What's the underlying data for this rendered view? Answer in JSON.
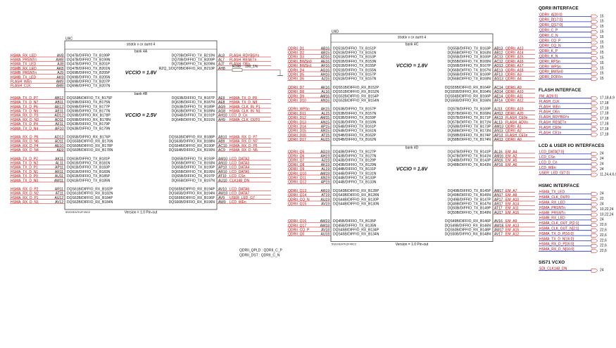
{
  "left_part": {
    "ref": "U9C",
    "title": "stratix v cx aumt 4",
    "version": "Version = 1.0 Pin-out",
    "part_no": "5SGXEA7K2F40C2",
    "resistor": {
      "ref": "R198",
      "value": "100_1%"
    },
    "groups": [
      {
        "label": "bank 4A",
        "vccio": "VCCIO = 1.8V",
        "left": [
          [
            "HSMA_RX_LED",
            "AV8",
            "DQ47B/DIFFIO_TX_B199P"
          ],
          [
            "HSMA_PRSNTn",
            "AW8",
            "DQ47B/DIFFIO_TX_B199N"
          ],
          [
            "HSMA_TX_LED",
            "AJ8",
            "DQ47B/DIFFIO_TX_B201P"
          ],
          [
            "HSMB_RX_LED",
            "AK8",
            "DQ47B/DIFFIO_TX_B201N"
          ],
          [
            "HSMB_PRSNTn",
            "AJ9",
            "DQ69B/DIFFIO_TX_B205P"
          ],
          [
            "HSMB_TX_LED",
            "AK9",
            "DQ69B/DIFFIO_TX_B205N"
          ],
          [
            "FLASH_WEn",
            "AM9",
            "DQ69B/DIFFIO_TX_B207P"
          ],
          [
            "FLASH_CLK",
            "AM8",
            "DQ69B/DIFFIO_TX_B207N"
          ]
        ],
        "right": [
          [
            "DQ70B/DIFFIO_TX_B210N",
            "AL8",
            "FLASH_RDYBSYn"
          ],
          [
            "DQ70B/DIFFIO_TX_B209P",
            "AL7",
            "FLASH_RESETn"
          ],
          [
            "DQ70B/DIFFIO_TX_B209N",
            "AJ7",
            "FLASH_OEn"
          ],
          [
            "RZQ_1/DQ70B/DIFFIO_RX_B210P",
            "AH8"
          ]
        ]
      },
      {
        "label": "bank 4B",
        "vccio": "VCCIO = 2.5V",
        "left": [
          [
            "HSMA_TX_D_P7",
            "AB12",
            "DQS59B/DIFFIO_TX_B175P"
          ],
          [
            "HSMA_TX_D_N7",
            "AB11",
            "DQ59B/DIFFIO_TX_B175N"
          ],
          [
            "HSMA_TX_D_P6",
            "AE12",
            "DQ59B/DIFFIO_TX_B177P"
          ],
          [
            "HSMA_TX_D_N6",
            "AE11",
            "DQ59B/DIFFIO_TX_B177N"
          ],
          [
            "HSMA_RX_D_P3",
            "AD12",
            "DQ59B/DIFFIO_RX_B178P"
          ],
          [
            "HSMA_RX_D_N3",
            "AD11",
            "DQ59B/DIFFIO_RX_B178N"
          ],
          [
            "HSMA_TX_D_P4",
            "AF11",
            "DQ63B/DIFFIO_TX_B179P"
          ],
          [
            "HSMA_TX_D_N4",
            "AF10",
            "DQ63B/DIFFIO_TX_B179N"
          ]
        ],
        "right": [
          [
            "DQ63B/DIFFIO_TX_B187P",
            "AE9",
            "HSMA_TX_D_P8"
          ],
          [
            "DQ63B/DIFFIO_TX_B187N",
            "AE8",
            "HSMA_TX_D_N8"
          ],
          [
            "DQ63B/DIFFIO_TX_B189P",
            "AG9",
            "HSMA_CLK_IN_P1"
          ],
          [
            "DQ63B/DIFFIO_TX_B189N",
            "AG8",
            "HSMA_CLK_IN_N1"
          ],
          [
            "DQ64B/DIFFIO_TX_B191P",
            "AH10",
            "LCD_D_Cn"
          ],
          [
            "DQ64B/DIFFIO_TX_B191N",
            "AH9",
            "HSMA_CLK_OUT0"
          ]
        ]
      },
      {
        "label": null,
        "vccio": null,
        "left": [
          [
            "HSMA_RX_D_P6",
            "AD12",
            "DQ55B/DIFFIO_RX_B176P"
          ],
          [
            "HSMA_RX_D_N6",
            "AD11",
            "DQS55B/DIFFIO_RX_B176N"
          ],
          [
            "HSMA_RX_D_P4",
            "AE10",
            "DQS60B/DIFFIO_RX_B178P"
          ],
          [
            "HSMA_RX_D_N4",
            "AE9",
            "DQS60B/DIFFIO_RX_B178N"
          ]
        ],
        "right": [
          [
            "DQS63B/DIFFIO_RX_B188P",
            "AB10",
            "HSMA_RX_D_P7"
          ],
          [
            "DQS63B/DIFFIO_RX_B188N",
            "AB9",
            "HSMA_RX_D_N7"
          ],
          [
            "DQS64B/DIFFIO_RX_B190P",
            "AC10",
            "HSMA_RX_D_P5"
          ],
          [
            "DQS64B/DIFFIO_RX_B190N",
            "AC9",
            "HSMA_RX_D_N5"
          ]
        ]
      },
      {
        "label": null,
        "vccio": null,
        "left": [
          [
            "HSMA_TX_D_P2",
            "AK11",
            "DQ61B/DIFFIO_TX_B181P"
          ],
          [
            "HSMA_TX_D_N2",
            "AL11",
            "DQ61B/DIFFIO_TX_B181N"
          ],
          [
            "HSMA_TX_D_P1",
            "AP11",
            "DQ61B/DIFFIO_TX_B183P"
          ],
          [
            "HSMA_TX_D_N1",
            "AR11",
            "DQ61B/DIFFIO_TX_B183N"
          ],
          [
            "HSMA_TX_D_P0",
            "AU11",
            "DQ61B/DIFFIO_TX_B185P"
          ],
          [
            "HSMA_TX_D_N0",
            "AW11",
            "DQ61B/DIFFIO_TX_B185N"
          ]
        ],
        "right": [
          [
            "DQ65B/DIFFIO_TX_B193P",
            "AM10",
            "LCD_DATA2"
          ],
          [
            "DQ65B/DIFFIO_TX_B193N",
            "AN10",
            "LCD_DATA3"
          ],
          [
            "DQ65B/DIFFIO_TX_B195P",
            "AP10",
            "LCD_DATA4"
          ],
          [
            "DQ65B/DIFFIO_TX_B195N",
            "AR10",
            "LCD_DATA5"
          ],
          [
            "DQ65B/DIFFIO_TX_B197P",
            "AT10",
            "LCD_CSn"
          ],
          [
            "DQ65B/DIFFIO_TX_B197N",
            "AU10",
            "CLK148_DN"
          ]
        ]
      },
      {
        "label": null,
        "vccio": null,
        "left": [
          [
            "HSMA_RX_D_P2",
            "AR11",
            "DQS61B/DIFFIO_RX_B182P"
          ],
          [
            "HSMA_RX_D_N2",
            "AT11",
            "DQS61B/DIFFIO_RX_B182N"
          ],
          [
            "HSMA_RX_D_P1",
            "AU12",
            "DQS62B/DIFFIO_RX_B184P"
          ],
          [
            "HSMA_RX_D_N1",
            "AV12",
            "DQS62B/DIFFIO_RX_B184N"
          ]
        ],
        "right": [
          [
            "DQS65B/DIFFIO_RX_B194P",
            "AV10",
            "LCD_DATA6"
          ],
          [
            "DQS65B/DIFFIO_RX_B194N",
            "AW10",
            "LCD_DATA7"
          ],
          [
            "DQS66B/DIFFIO_RX_B196P",
            "AV9",
            "USER_LED_G7"
          ],
          [
            "DQS66B/DIFFIO_RX_B196N",
            "AW9",
            "LCD_WEn"
          ]
        ]
      }
    ]
  },
  "right_part": {
    "ref": "U9D",
    "title": "stratix v cx aumt 4",
    "version": "Version = 1.0 Pin-out",
    "part_no": "5SGXEA7K2F40C2",
    "groups": [
      {
        "label": "bank 4C",
        "vccio": "VCCIO = 1.8V",
        "left": [
          [
            "QDRII_D1",
            "AB16",
            "DQ51B/DIFFIO_TX_B151P"
          ],
          [
            "QDRII_D2",
            "AB15",
            "DQ51B/DIFFIO_TX_B151N"
          ],
          [
            "QDRII_D3",
            "AD16",
            "DQ51B/DIFFIO_TX_B153P"
          ],
          [
            "QDRII_BWSn0",
            "AE16",
            "DQ51B/DIFFIO_TX_B153N"
          ],
          [
            "QDRII_BWSn1",
            "AF16",
            "DQ51B/DIFFIO_TX_B155P"
          ],
          [
            "QDRII_D4",
            "AG16",
            "DQ51B/DIFFIO_TX_B155N"
          ],
          [
            "QDRII_D5",
            "AH16",
            "DQ51B/DIFFIO_TX_B157P"
          ],
          [
            "QDRII_D6",
            "AJ16",
            "DQ51B/DIFFIO_TX_B157N"
          ]
        ],
        "right": [
          [
            "DQ55B/DIFFIO_TX_B163P",
            "AB13",
            "QDRII_A13"
          ],
          [
            "DQ55B/DIFFIO_TX_B163N",
            "AB12",
            "QDRII_A14"
          ],
          [
            "DQ55B/DIFFIO_TX_B165P",
            "AC13",
            "QDRII_A15"
          ],
          [
            "DQ55B/DIFFIO_TX_B165N",
            "AC12",
            "QDRII_A16"
          ],
          [
            "DQ56B/DIFFIO_TX_B167P",
            "AD13",
            "QDRII_A17"
          ],
          [
            "DQ56B/DIFFIO_TX_B167N",
            "AE13",
            "QDRII_A18"
          ],
          [
            "DQ56B/DIFFIO_TX_B169P",
            "AF13",
            "QDRII_A3"
          ],
          [
            "DQ56B/DIFFIO_TX_B169N",
            "AG13",
            "QDRII_A4"
          ]
        ]
      },
      {
        "label": null,
        "vccio": null,
        "left": [
          [
            "QDRII_D7",
            "AK16",
            "DQS51B/DIFFIO_RX_B152P"
          ],
          [
            "QDRII_D8",
            "AL16",
            "DQS51B/DIFFIO_RX_B152N"
          ],
          [
            "QDRII_D9",
            "AM16",
            "DQS52B/DIFFIO_RX_B154P"
          ],
          [
            "QDRII_D10",
            "AN16",
            "DQS52B/DIFFIO_RX_B154N"
          ]
        ],
        "right": [
          [
            "DQS55B/DIFFIO_RX_B164P",
            "AC14",
            "QDRII_A9"
          ],
          [
            "DQS55B/DIFFIO_RX_B164N",
            "AD14",
            "QDRII_A10"
          ],
          [
            "DQS56B/DIFFIO_RX_B166P",
            "AE14",
            "QDRII_A11"
          ],
          [
            "DQS56B/DIFFIO_RX_B166N",
            "AF14",
            "QDRII_A12"
          ]
        ]
      },
      {
        "label": null,
        "vccio": null,
        "left": [
          [
            "QDRII_WPSn",
            "AK15",
            "DQ53B/DIFFIO_TX_B157P"
          ],
          [
            "QDRII_D11",
            "AL15",
            "DQ53B/DIFFIO_TX_B157N"
          ],
          [
            "QDRII_D12",
            "AM15",
            "DQ53B/DIFFIO_TX_B159P"
          ],
          [
            "QDRII_D13",
            "AN15",
            "DQ53B/DIFFIO_TX_B159N"
          ],
          [
            "QDRII_D14",
            "AP15",
            "DQ54B/DIFFIO_TX_B161P"
          ],
          [
            "QDRII_D15",
            "AR15",
            "DQ54B/DIFFIO_TX_B161N"
          ],
          [
            "QDRII_D16",
            "AT15",
            "DQ54B/DIFFIO_TX_B162P"
          ],
          [
            "QDRII_D17",
            "AU15",
            "DQ54B/DIFFIO_TX_B162N"
          ]
        ],
        "right": [
          [
            "DQ57B/DIFFIO_TX_B169P",
            "AJ13",
            "QDRII_A19"
          ],
          [
            "DQ57B/DIFFIO_TX_B169N",
            "AH13",
            "QDRII_A20"
          ],
          [
            "DQ57B/DIFFIO_TX_B171P",
            "AK13",
            "FLASH_CE0n"
          ],
          [
            "DQ57B/DIFFIO_TX_B171N",
            "AL13",
            "FLASH_ADVn"
          ],
          [
            "DQ58B/DIFFIO_TX_B173P",
            "AM13",
            "QDRII_A1"
          ],
          [
            "DQ58B/DIFFIO_TX_B173N",
            "AN13",
            "QDRII_A2"
          ],
          [
            "DQ58B/DIFFIO_TX_B174P",
            "AP13",
            "FLASH_CE1n"
          ],
          [
            "DQ58B/DIFFIO_TX_B174N",
            "AR13",
            "QDRII_A0"
          ]
        ]
      },
      {
        "label": "bank 4D",
        "vccio": "VCCIO = 1.8V",
        "left": [
          [
            "QDRII_Q5",
            "AG19",
            "DQ43B/DIFFIO_TX_B127P"
          ],
          [
            "QDRII_Q6",
            "AH19",
            "DQ43B/DIFFIO_TX_B127N"
          ],
          [
            "QDRII_Q7",
            "AJ19",
            "DQ43B/DIFFIO_TX_B129P"
          ],
          [
            "QDRII_Q8",
            "AK19",
            "DQ43B/DIFFIO_TX_B129N"
          ],
          [
            "QDRII_Q9",
            "AL19",
            "DQ44B/DIFFIO_TX_B131P"
          ],
          [
            "QDRII_Q10",
            "AM19",
            "DQ44B/DIFFIO_TX_B131N"
          ],
          [
            "QDRII_Q11",
            "AN19",
            "DQ44B/DIFFIO_TX_B133P"
          ],
          [
            "QDRII_Q12",
            "AP19",
            "DQ44B/DIFFIO_TX_B133N"
          ]
        ],
        "right": [
          [
            "DQ47B/DIFFIO_TX_B141P",
            "AL16",
            "EM_A4"
          ],
          [
            "DQ47B/DIFFIO_TX_B141N",
            "AM16",
            "EM_A2"
          ],
          [
            "DQ48B/DIFFIO_TX_B143P",
            "AN16",
            "EM_A5"
          ],
          [
            "DQ48B/DIFFIO_TX_B143N",
            "AP16",
            "EM_A6"
          ]
        ]
      },
      {
        "label": null,
        "vccio": null,
        "left": [
          [
            "QDRII_Q13",
            "AR19",
            "DQS43B/DIFFIO_RX_B128P"
          ],
          [
            "QDRII_Q14",
            "AT19",
            "DQS43B/DIFFIO_RX_B128N"
          ],
          [
            "QDRII_CQ_N",
            "AU19",
            "DQS44B/DIFFIO_RX_B130P"
          ],
          [
            "QDRII_Q15",
            "AV19",
            "DQS44B/DIFFIO_RX_B130N"
          ]
        ],
        "right": [
          [
            "DQ49B/DIFFIO_TX_B145P",
            "AM17",
            "EM_A7"
          ],
          [
            "DQ49B/DIFFIO_TX_B145N",
            "AN17",
            "EM_A8"
          ],
          [
            "DQ49B/DIFFIO_TX_B147P",
            "AP17",
            "EM_A10"
          ],
          [
            "DQ49B/DIFFIO_TX_B147N",
            "AR17",
            "EM_A14"
          ],
          [
            "DQ50B/DIFFIO_TX_B149P",
            "AT17",
            "EM_A11"
          ],
          [
            "DQ50B/DIFFIO_TX_B149N",
            "AU17",
            "EM_A16"
          ]
        ]
      },
      {
        "label": null,
        "vccio": null,
        "left": [
          [
            "QDRII_Q16",
            "AW19",
            "DQ45B/DIFFIO_TX_B135P"
          ],
          [
            "QDRII_Q17",
            "AW18",
            "DQ45B/DIFFIO_TX_B135N"
          ],
          [
            "QDRII_CQ_P",
            "AV18",
            "DQS45B/DIFFIO_RX_B134P"
          ],
          [
            "QDRII_Q0",
            "AU18",
            "DQS45B/DIFFIO_RX_B134N"
          ]
        ],
        "right": [
          [
            "DQS49B/DIFFIO_RX_B146P",
            "AV16",
            "EM_A9"
          ],
          [
            "DQS49B/DIFFIO_RX_B146N",
            "AW16",
            "EM_A13"
          ],
          [
            "DQS50B/DIFFIO_RX_B148P",
            "AW17",
            "EM_A15"
          ],
          [
            "DQS50B/DIFFIO_RX_B148N",
            "AV17",
            "EM_A12"
          ]
        ]
      }
    ]
  },
  "notes": [
    "QDRII_QPLD : QDRII_C_P",
    "QDRII_DST : QDRII_C_N"
  ],
  "interfaces": [
    {
      "title": "QDRII INTERFACE",
      "items": [
        [
          "QDRII_A[20:0]",
          "15"
        ],
        [
          "QDRII_D[17:0]",
          "15"
        ],
        [
          "QDRII_Q[17:0]",
          "15"
        ],
        [
          "QDRII_C_P",
          "15"
        ],
        [
          "QDRII_C_N",
          "15"
        ],
        [
          "QDRII_CQ_P",
          "15"
        ],
        [
          "QDRII_CQ_N",
          "15"
        ],
        [
          "QDRII_K_P",
          "15"
        ],
        [
          "QDRII_K_N",
          "15"
        ],
        [
          "QDRII_RPSn",
          "15"
        ],
        [
          "QDRII_WPSn",
          "15"
        ],
        [
          "QDRII_BWSn0",
          "15"
        ],
        [
          "QDRII_DOFFn",
          "15"
        ]
      ]
    },
    {
      "title": "FLASH INTERFACE",
      "items": [
        [
          "FM_A[26:0]",
          "17,18,4,9"
        ],
        [
          "FLASH_CLK",
          "17,18"
        ],
        [
          "FLASH_WEn",
          "17,18"
        ],
        [
          "FLASH_OEn",
          "17,18"
        ],
        [
          "FLASH_RDYBSYn",
          "17,18"
        ],
        [
          "FLASH_RESETn",
          "17,18"
        ],
        [
          "FLASH_CE0n",
          "17,18"
        ],
        [
          "FLASH_CE1n",
          "17,18"
        ]
      ]
    },
    {
      "title": "LCD & USER I/O INTERFACES",
      "items": [
        [
          "LCD_DATA[7:0]",
          "24"
        ],
        [
          "LCD_CSn",
          "24"
        ],
        [
          "LCD_D_Cn",
          "24"
        ],
        [
          "LCD_WEn",
          "24"
        ],
        [
          "USER_LED_G[7:0]",
          "11,24,4,6,9"
        ]
      ]
    },
    {
      "title": "HSMC INTERFACE",
      "items": [
        [
          "HSMA_TX_LED",
          "24"
        ],
        [
          "HSMA_CLK_OUT0",
          "22"
        ],
        [
          "HSMA_RX_LED",
          "24"
        ],
        [
          "HSMA_PRSNTn",
          "10,22,24"
        ],
        [
          "HSMB_PRSNTn",
          "10,22,24"
        ],
        [
          "HSMB_RX_LED",
          "24"
        ],
        [
          "HSMA_CLK_OUT_P[2:1]",
          "22,6"
        ],
        [
          "HSMA_CLK_OUT_N[2:1]",
          "22,6"
        ],
        [
          "HSMA_TX_D_P[16:0]",
          "22,6"
        ],
        [
          "HSMA_TX_D_N[16:0]",
          "22,6"
        ],
        [
          "HSMA_RX_D_P[16:0]",
          "22,6"
        ],
        [
          "HSMA_RX_D_N[16:0]",
          "22,6"
        ]
      ]
    },
    {
      "title": "SI571 VCXO",
      "items": [
        [
          "SDI_CLK148_DN",
          "24"
        ]
      ]
    }
  ]
}
